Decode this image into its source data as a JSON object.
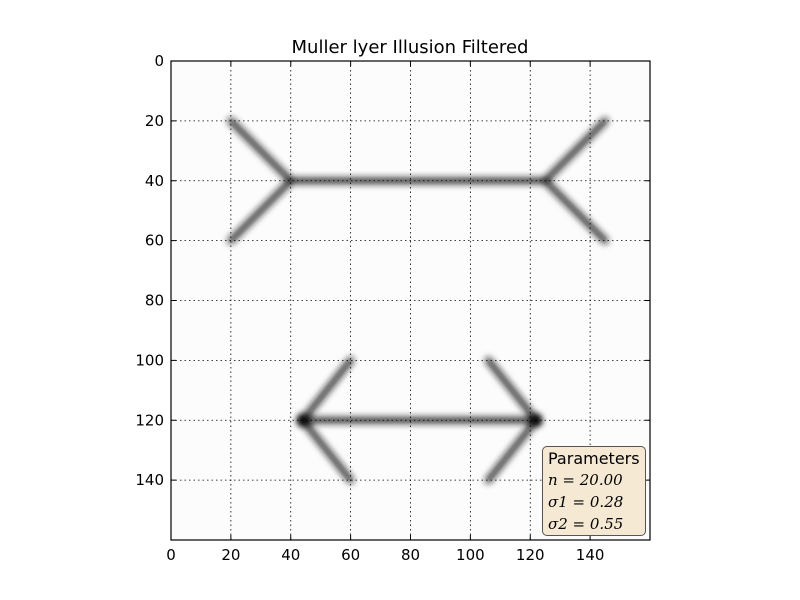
{
  "chart_data": {
    "type": "heatmap",
    "title": "Muller lyer Illusion Filtered",
    "xlabel": "",
    "ylabel": "",
    "xlim": [
      0,
      160
    ],
    "ylim": [
      160,
      0
    ],
    "x_ticks": [
      0,
      20,
      40,
      60,
      80,
      100,
      120,
      140
    ],
    "y_ticks": [
      0,
      20,
      40,
      60,
      80,
      100,
      120,
      140
    ],
    "grid": true,
    "colormap": "gray_r",
    "segments": [
      {
        "x1": 20,
        "y1": 20,
        "x2": 40,
        "y2": 40
      },
      {
        "x1": 20,
        "y1": 60,
        "x2": 40,
        "y2": 40
      },
      {
        "x1": 40,
        "y1": 40,
        "x2": 125,
        "y2": 40
      },
      {
        "x1": 145,
        "y1": 20,
        "x2": 125,
        "y2": 40
      },
      {
        "x1": 145,
        "y1": 60,
        "x2": 125,
        "y2": 40
      },
      {
        "x1": 44,
        "y1": 120,
        "x2": 60,
        "y2": 100
      },
      {
        "x1": 44,
        "y1": 120,
        "x2": 60,
        "y2": 140
      },
      {
        "x1": 44,
        "y1": 120,
        "x2": 122,
        "y2": 120
      },
      {
        "x1": 122,
        "y1": 120,
        "x2": 106,
        "y2": 100
      },
      {
        "x1": 122,
        "y1": 120,
        "x2": 106,
        "y2": 140
      }
    ],
    "hotspots": [
      {
        "x": 44,
        "y": 120
      },
      {
        "x": 122,
        "y": 120
      }
    ],
    "legend": {
      "title": "Parameters",
      "lines": [
        "n = 20.00",
        "σ1 = 0.28",
        "σ2 = 0.55"
      ],
      "placement": "lower-right",
      "background": "#f6e9d3"
    }
  }
}
